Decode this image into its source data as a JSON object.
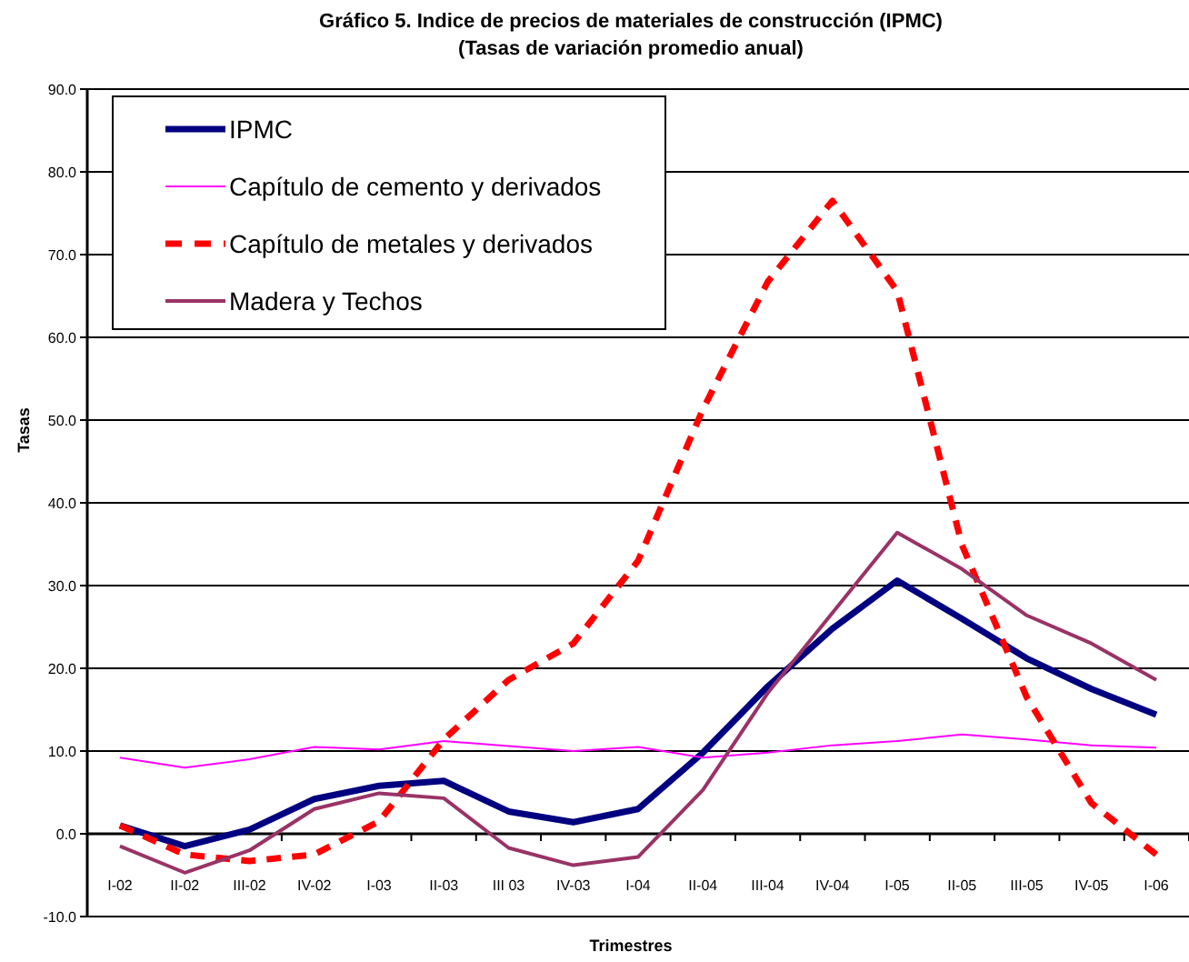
{
  "chart_data": {
    "type": "line",
    "title": "Gráfico 5. Indice de precios de materiales de construcción (IPMC)",
    "subtitle": "(Tasas de variación promedio anual)",
    "xlabel": "Trimestres",
    "ylabel": "Tasas",
    "categories": [
      "I-02",
      "II-02",
      "III-02",
      "IV-02",
      "I-03",
      "II-03",
      "III 03",
      "IV-03",
      "I-04",
      "II-04",
      "III-04",
      "IV-04",
      "I-05",
      "II-05",
      "III-05",
      "IV-05",
      "I-06"
    ],
    "ylim": [
      -10,
      90
    ],
    "yticks": [
      {
        "value": -10,
        "label": "-10.0"
      },
      {
        "value": 0,
        "label": "0.0"
      },
      {
        "value": 10,
        "label": "10.0"
      },
      {
        "value": 20,
        "label": "20.0"
      },
      {
        "value": 30,
        "label": "30.0"
      },
      {
        "value": 40,
        "label": "40.0"
      },
      {
        "value": 50,
        "label": "50.0"
      },
      {
        "value": 60,
        "label": "60.0"
      },
      {
        "value": 70,
        "label": "70.0"
      },
      {
        "value": 80,
        "label": "80.0"
      },
      {
        "value": 90,
        "label": "90.0"
      }
    ],
    "grid": "y",
    "legend": "top left",
    "marker": "none",
    "series": [
      {
        "name": "IPMC",
        "color": "#000080",
        "line_style": "solid",
        "values": [
          1.0,
          -1.5,
          0.5,
          4.2,
          5.8,
          6.4,
          2.7,
          1.4,
          3.0,
          9.8,
          17.8,
          24.8,
          30.6,
          26.0,
          21.2,
          17.5,
          14.4
        ]
      },
      {
        "name": "Capítulo de cemento y derivados",
        "color": "#ff00ff",
        "line_style": "solid",
        "values": [
          9.2,
          8.0,
          9.0,
          10.5,
          10.2,
          11.2,
          10.6,
          10.0,
          10.5,
          9.2,
          9.8,
          10.7,
          11.2,
          12.0,
          11.4,
          10.7,
          10.4
        ]
      },
      {
        "name": "Capítulo de metales y derivados",
        "color": "#ff0000",
        "line_style": "dashed",
        "values": [
          1.0,
          -2.5,
          -3.3,
          -2.5,
          1.5,
          11.4,
          18.6,
          23.0,
          33.0,
          51.3,
          66.7,
          76.5,
          65.6,
          34.9,
          16.5,
          3.7,
          -2.5
        ]
      },
      {
        "name": "Madera y Techos",
        "color": "#993366",
        "line_style": "solid",
        "values": [
          -1.5,
          -4.7,
          -2.0,
          3.0,
          4.9,
          4.3,
          -1.7,
          -3.8,
          -2.8,
          5.3,
          17.0,
          26.7,
          36.4,
          32.0,
          26.4,
          23.0,
          18.6
        ]
      }
    ]
  }
}
